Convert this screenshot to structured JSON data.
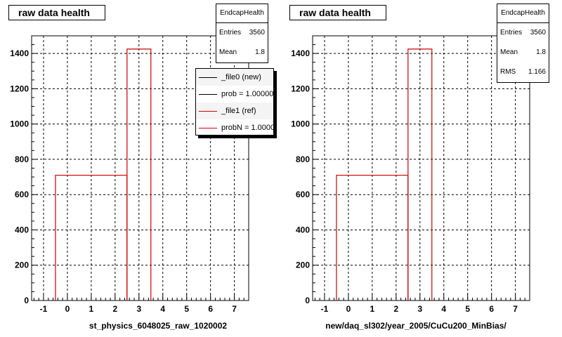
{
  "chart_data": [
    {
      "type": "histogram",
      "title": "raw data health",
      "xlabel": "st_physics_6048025_raw_1020002",
      "ylabel": "",
      "xlim": [
        -1.5,
        7.6
      ],
      "ylim": [
        0,
        1500
      ],
      "x_ticks": [
        -1,
        0,
        1,
        2,
        3,
        4,
        5,
        6,
        7
      ],
      "y_ticks": [
        0,
        200,
        400,
        600,
        800,
        1000,
        1200,
        1400
      ],
      "grid": true,
      "bins": [
        {
          "x0": -0.5,
          "x1": 2.5,
          "value": 710
        },
        {
          "x0": 2.5,
          "x1": 3.5,
          "value": 1425
        },
        {
          "x0": 3.5,
          "x1": 7.6,
          "value": 0
        }
      ],
      "series_color": "#cc0000",
      "stats": {
        "header": "EndcapHealth",
        "rows": [
          {
            "label": "Entries",
            "value": "3560"
          },
          {
            "label": "Mean",
            "value": "1.8"
          }
        ]
      },
      "legend": {
        "placement": "top-right",
        "entries": [
          {
            "label": "_file0 (new)",
            "color": "#000000"
          },
          {
            "label": "prob = 1.000000",
            "color": "#000000"
          },
          {
            "label": "_file1 (ref)",
            "color": "#cc0000"
          },
          {
            "label": "probN = 1.000000",
            "color": "#cc0000"
          }
        ]
      }
    },
    {
      "type": "histogram",
      "title": "raw data health",
      "xlabel": "new/daq_sl302/year_2005/CuCu200_MinBias/",
      "ylabel": "",
      "xlim": [
        -1.5,
        7.6
      ],
      "ylim": [
        0,
        1500
      ],
      "x_ticks": [
        -1,
        0,
        1,
        2,
        3,
        4,
        5,
        6,
        7
      ],
      "y_ticks": [
        0,
        200,
        400,
        600,
        800,
        1000,
        1200,
        1400
      ],
      "grid": true,
      "bins": [
        {
          "x0": -0.5,
          "x1": 2.5,
          "value": 710
        },
        {
          "x0": 2.5,
          "x1": 3.5,
          "value": 1425
        },
        {
          "x0": 3.5,
          "x1": 7.6,
          "value": 0
        }
      ],
      "series_color": "#cc0000",
      "stats": {
        "header": "EndcapHealth",
        "rows": [
          {
            "label": "Entries",
            "value": "3560"
          },
          {
            "label": "Mean",
            "value": "1.8"
          },
          {
            "label": "RMS",
            "value": "1.166"
          }
        ]
      }
    }
  ]
}
